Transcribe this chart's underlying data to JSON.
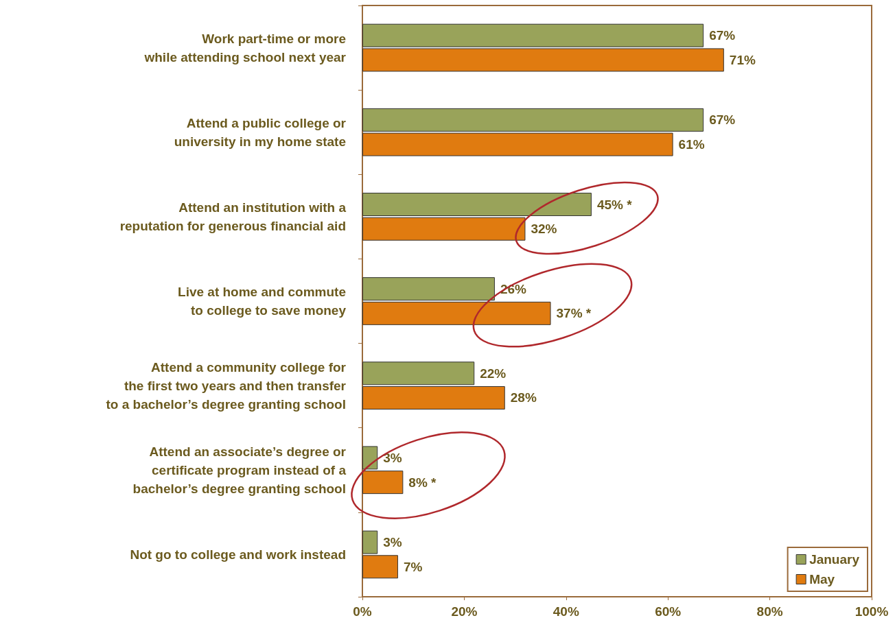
{
  "chart_data": {
    "type": "bar",
    "orientation": "horizontal",
    "categories": [
      "Work part-time or more\nwhile attending school next year",
      "Attend a public college or\nuniversity in my home state",
      "Attend an institution with a\nreputation for generous financial aid",
      "Live at home and commute\nto college to save money",
      "Attend a community college for\nthe first two years and then transfer\nto a bachelor’s degree granting school",
      "Attend an associate’s degree or\ncertificate program instead of a\nbachelor’s degree granting school",
      "Not go to college and work instead"
    ],
    "series": [
      {
        "name": "January",
        "color": "#99a35a",
        "values": [
          67,
          67,
          45,
          26,
          22,
          3,
          3
        ],
        "value_labels": [
          "67%",
          "67%",
          "45% *",
          "26%",
          "22%",
          "3%",
          "3%"
        ]
      },
      {
        "name": "May",
        "color": "#e07b10",
        "values": [
          71,
          61,
          32,
          37,
          28,
          8,
          7
        ],
        "value_labels": [
          "71%",
          "61%",
          "32%",
          "37% *",
          "28%",
          "8% *",
          "7%"
        ]
      }
    ],
    "xlim": [
      0,
      100
    ],
    "xticks": [
      {
        "value": 0,
        "label": "0%"
      },
      {
        "value": 20,
        "label": "20%"
      },
      {
        "value": 40,
        "label": "40%"
      },
      {
        "value": 60,
        "label": "60%"
      },
      {
        "value": 80,
        "label": "80%"
      },
      {
        "value": 100,
        "label": "100%"
      }
    ],
    "grid": false,
    "legend": "bottom right"
  }
}
